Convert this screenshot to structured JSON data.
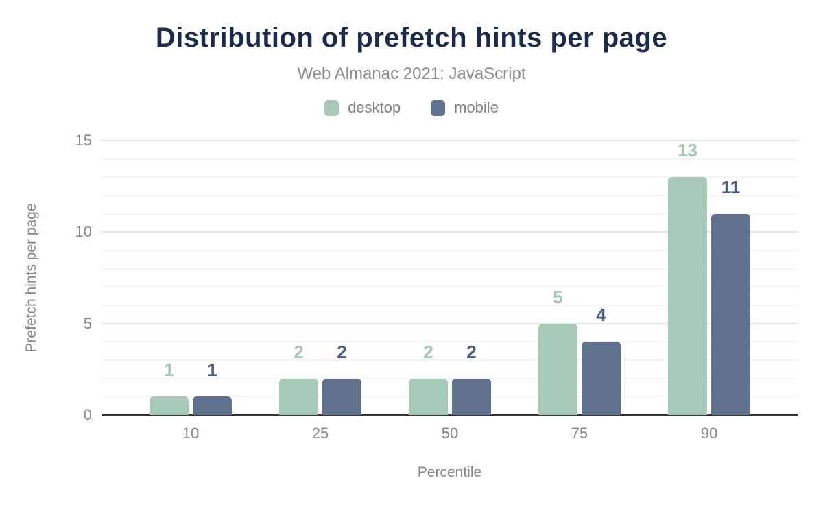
{
  "chart_data": {
    "type": "bar",
    "title": "Distribution of prefetch hints per page",
    "subtitle": "Web Almanac 2021: JavaScript",
    "xlabel": "Percentile",
    "ylabel": "Prefetch hints per page",
    "categories": [
      "10",
      "25",
      "50",
      "75",
      "90"
    ],
    "series": [
      {
        "name": "desktop",
        "color": "#a7c9b8",
        "label_color": "#a3c6b2",
        "values": [
          1,
          2,
          2,
          5,
          13
        ]
      },
      {
        "name": "mobile",
        "color": "#5f718d",
        "label_color": "#485b80",
        "values": [
          1,
          2,
          2,
          4,
          11
        ]
      }
    ],
    "ylim": [
      0,
      15
    ],
    "yticks": [
      0,
      5,
      10,
      15
    ],
    "grid": "horizontal minor every 1 unit, major every 5 units",
    "legend_position": "top",
    "data_labels": "above bars, colored per series"
  },
  "colors": {
    "title": "#1c2b4a",
    "subtitle": "#85898e",
    "tick_text": "#83878c",
    "axis_line": "#333333",
    "grid_minor": "#f4f4f5",
    "grid_major": "#e3e5e7",
    "background": "#ffffff"
  }
}
